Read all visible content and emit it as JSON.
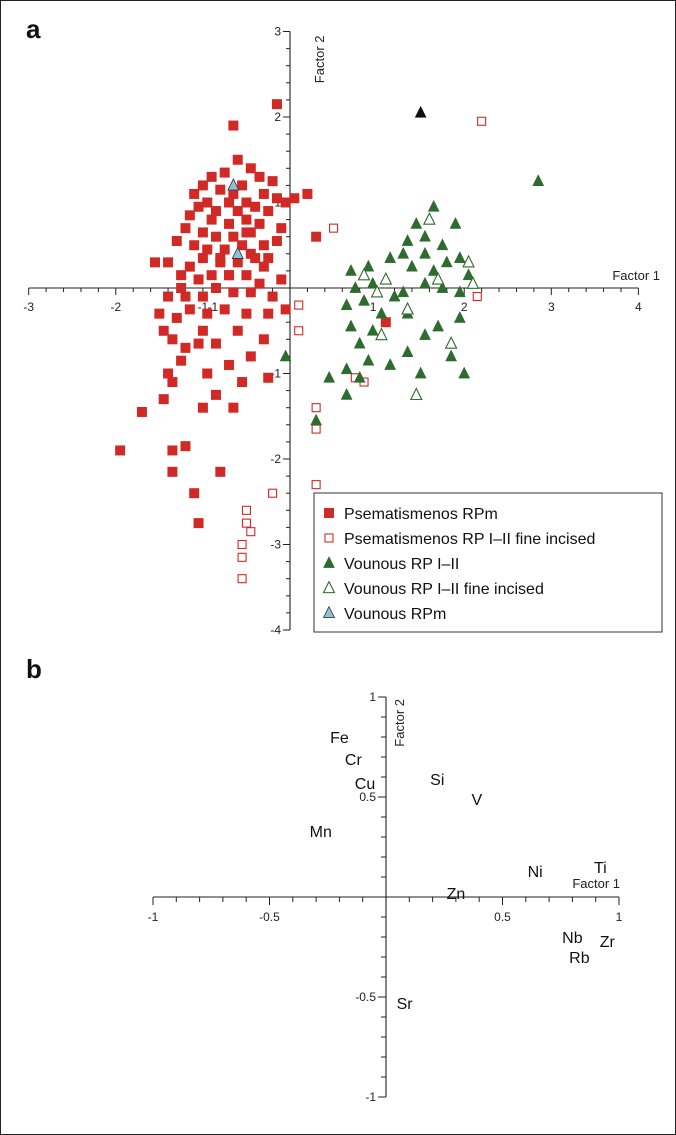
{
  "panels": {
    "a": {
      "letter": "a"
    },
    "b": {
      "letter": "b"
    }
  },
  "colors": {
    "psem_fill": "#d12a26",
    "vounous_fill": "#2e6b2e",
    "black": "#111111",
    "blue": "#8fc0d8",
    "axis": "#222222"
  },
  "chart_data": [
    {
      "type": "scatter",
      "panel": "a",
      "xlabel": "Factor 1",
      "ylabel": "Factor 2",
      "xlim": [
        -3,
        4
      ],
      "ylim": [
        -4,
        3
      ],
      "xticks": [
        -3,
        -2,
        -1,
        2,
        3,
        4
      ],
      "yticks": [
        3,
        2,
        1,
        -1,
        -2,
        -3,
        -4
      ],
      "grid": false,
      "legend_position": "bottom-right",
      "series": [
        {
          "name": "Psematismenos RPm",
          "marker": "square-filled",
          "color": "#d12a26",
          "points": [
            [
              -0.6,
              1.5
            ],
            [
              -0.45,
              1.4
            ],
            [
              -0.35,
              1.3
            ],
            [
              -0.2,
              1.25
            ],
            [
              -0.75,
              1.35
            ],
            [
              -0.9,
              1.3
            ],
            [
              -0.55,
              1.2
            ],
            [
              -0.3,
              1.1
            ],
            [
              -0.15,
              1.05
            ],
            [
              -0.65,
              1.1
            ],
            [
              -0.8,
              1.15
            ],
            [
              -1.0,
              1.2
            ],
            [
              -1.1,
              1.1
            ],
            [
              -0.95,
              1.0
            ],
            [
              -0.7,
              1.0
            ],
            [
              -0.5,
              1.0
            ],
            [
              -0.4,
              0.95
            ],
            [
              -0.25,
              0.9
            ],
            [
              -0.6,
              0.9
            ],
            [
              -0.85,
              0.9
            ],
            [
              -1.05,
              0.95
            ],
            [
              -1.15,
              0.85
            ],
            [
              -0.9,
              0.8
            ],
            [
              -0.7,
              0.75
            ],
            [
              -0.5,
              0.8
            ],
            [
              -0.35,
              0.75
            ],
            [
              -0.1,
              0.7
            ],
            [
              -0.45,
              0.65
            ],
            [
              -0.65,
              0.6
            ],
            [
              -0.85,
              0.6
            ],
            [
              -1.0,
              0.65
            ],
            [
              -1.2,
              0.7
            ],
            [
              -0.55,
              0.5
            ],
            [
              -0.75,
              0.45
            ],
            [
              -0.95,
              0.45
            ],
            [
              -0.3,
              0.5
            ],
            [
              -0.15,
              0.55
            ],
            [
              -1.1,
              0.5
            ],
            [
              -1.3,
              0.55
            ],
            [
              -0.4,
              0.35
            ],
            [
              -0.6,
              0.3
            ],
            [
              -0.8,
              0.3
            ],
            [
              -1.0,
              0.35
            ],
            [
              -1.15,
              0.25
            ],
            [
              -1.4,
              0.3
            ],
            [
              -1.55,
              0.3
            ],
            [
              -0.5,
              0.15
            ],
            [
              -0.7,
              0.15
            ],
            [
              -0.9,
              0.15
            ],
            [
              -1.05,
              0.1
            ],
            [
              -1.25,
              0.15
            ],
            [
              -0.3,
              0.25
            ],
            [
              -0.1,
              0.1
            ],
            [
              -0.2,
              -0.1
            ],
            [
              -0.45,
              -0.05
            ],
            [
              -0.65,
              -0.05
            ],
            [
              -0.85,
              0.0
            ],
            [
              -1.0,
              -0.1
            ],
            [
              -1.2,
              -0.1
            ],
            [
              -1.4,
              -0.1
            ],
            [
              -1.5,
              -0.3
            ],
            [
              -0.5,
              -0.3
            ],
            [
              -0.75,
              -0.25
            ],
            [
              -0.95,
              -0.3
            ],
            [
              -1.15,
              -0.25
            ],
            [
              -1.3,
              -0.35
            ],
            [
              -0.25,
              -0.3
            ],
            [
              -0.05,
              -0.25
            ],
            [
              -1.45,
              -0.5
            ],
            [
              -1.0,
              -0.5
            ],
            [
              -0.6,
              -0.5
            ],
            [
              -0.3,
              -0.6
            ],
            [
              -1.35,
              -0.6
            ],
            [
              -1.2,
              -0.7
            ],
            [
              -1.05,
              -0.65
            ],
            [
              -0.85,
              -0.65
            ],
            [
              -0.45,
              -0.8
            ],
            [
              -1.25,
              -0.85
            ],
            [
              -0.7,
              -0.9
            ],
            [
              -1.4,
              -1.0
            ],
            [
              -1.35,
              -1.1
            ],
            [
              -0.95,
              -1.0
            ],
            [
              -0.55,
              -1.1
            ],
            [
              -0.25,
              -1.05
            ],
            [
              -0.85,
              -1.25
            ],
            [
              -1.45,
              -1.3
            ],
            [
              -0.65,
              -1.4
            ],
            [
              -1.0,
              -1.4
            ],
            [
              -1.7,
              -1.45
            ],
            [
              -1.95,
              -1.9
            ],
            [
              -1.35,
              -1.9
            ],
            [
              -1.2,
              -1.85
            ],
            [
              -1.35,
              -2.15
            ],
            [
              -0.8,
              -2.15
            ],
            [
              -1.1,
              -2.4
            ],
            [
              -1.05,
              -2.75
            ],
            [
              -0.7,
              0.15
            ],
            [
              -1.25,
              0.0
            ],
            [
              -0.15,
              2.15
            ],
            [
              -0.45,
              0.4
            ],
            [
              -0.35,
              0.05
            ],
            [
              -0.25,
              0.35
            ],
            [
              -0.05,
              1.0
            ],
            [
              0.05,
              1.05
            ],
            [
              0.2,
              1.1
            ],
            [
              0.3,
              0.6
            ],
            [
              -0.65,
              1.9
            ],
            [
              -0.5,
              0.65
            ],
            [
              -0.8,
              0.35
            ],
            [
              1.1,
              -0.4
            ]
          ]
        },
        {
          "name": "Psematismenos RP I–II fine incised",
          "marker": "square-open",
          "color": "#d12a26",
          "points": [
            [
              2.2,
              1.95
            ],
            [
              0.5,
              0.7
            ],
            [
              0.1,
              -0.2
            ],
            [
              0.1,
              -0.5
            ],
            [
              0.75,
              -1.05
            ],
            [
              0.85,
              -1.1
            ],
            [
              0.3,
              -1.4
            ],
            [
              0.3,
              -1.65
            ],
            [
              0.3,
              -2.3
            ],
            [
              -0.5,
              -2.6
            ],
            [
              -0.5,
              -2.75
            ],
            [
              -0.45,
              -2.85
            ],
            [
              -0.55,
              -3.0
            ],
            [
              -0.55,
              -3.15
            ],
            [
              -0.55,
              -3.4
            ],
            [
              -0.2,
              -2.4
            ],
            [
              2.15,
              -0.1
            ]
          ]
        },
        {
          "name": "Vounous RP I–II",
          "marker": "triangle-filled",
          "color": "#2e6b2e",
          "points": [
            [
              2.85,
              1.25
            ],
            [
              1.65,
              0.95
            ],
            [
              1.45,
              0.75
            ],
            [
              1.9,
              0.75
            ],
            [
              1.55,
              0.6
            ],
            [
              1.35,
              0.55
            ],
            [
              1.75,
              0.5
            ],
            [
              1.15,
              0.35
            ],
            [
              1.3,
              0.4
            ],
            [
              1.55,
              0.4
            ],
            [
              1.95,
              0.35
            ],
            [
              1.4,
              0.25
            ],
            [
              1.65,
              0.2
            ],
            [
              1.8,
              0.3
            ],
            [
              2.05,
              0.15
            ],
            [
              0.9,
              0.25
            ],
            [
              0.7,
              0.2
            ],
            [
              1.55,
              0.05
            ],
            [
              1.3,
              -0.05
            ],
            [
              0.95,
              0.05
            ],
            [
              0.75,
              0.0
            ],
            [
              1.75,
              0.0
            ],
            [
              1.95,
              -0.05
            ],
            [
              1.2,
              -0.1
            ],
            [
              0.85,
              -0.15
            ],
            [
              0.65,
              -0.2
            ],
            [
              1.05,
              -0.3
            ],
            [
              1.35,
              -0.3
            ],
            [
              1.7,
              -0.45
            ],
            [
              1.95,
              -0.35
            ],
            [
              0.95,
              -0.5
            ],
            [
              0.7,
              -0.45
            ],
            [
              1.55,
              -0.55
            ],
            [
              0.8,
              -0.65
            ],
            [
              1.35,
              -0.75
            ],
            [
              1.85,
              -0.8
            ],
            [
              0.9,
              -0.85
            ],
            [
              0.65,
              -0.95
            ],
            [
              1.15,
              -0.9
            ],
            [
              0.8,
              -1.05
            ],
            [
              0.45,
              -1.05
            ],
            [
              1.5,
              -1.0
            ],
            [
              2.0,
              -1.0
            ],
            [
              0.65,
              -1.25
            ],
            [
              0.3,
              -1.55
            ],
            [
              -0.05,
              -0.8
            ]
          ]
        },
        {
          "name": "Vounous RP I–II fine incised",
          "marker": "triangle-open",
          "color": "#2e6b2e",
          "points": [
            [
              1.6,
              0.8
            ],
            [
              2.05,
              0.3
            ],
            [
              1.7,
              0.1
            ],
            [
              1.1,
              0.1
            ],
            [
              2.1,
              0.05
            ],
            [
              1.35,
              -0.25
            ],
            [
              1.0,
              -0.05
            ],
            [
              0.85,
              0.15
            ],
            [
              1.85,
              -0.65
            ],
            [
              1.05,
              -0.55
            ],
            [
              1.45,
              -1.25
            ]
          ]
        },
        {
          "name": "Vounous RPm",
          "marker": "triangle-filled",
          "color": "#8fc0d8",
          "points": [
            [
              -0.65,
              1.2
            ],
            [
              -0.6,
              0.4
            ]
          ]
        },
        {
          "name": "",
          "marker": "triangle-filled",
          "color": "#111111",
          "points": [
            [
              1.5,
              2.05
            ]
          ]
        }
      ]
    },
    {
      "type": "scatter",
      "panel": "b",
      "xlabel": "Factor 1",
      "ylabel": "Factor 2",
      "xlim": [
        -1,
        1
      ],
      "ylim": [
        -1,
        1
      ],
      "xticks": [
        -1,
        -0.5,
        0.5,
        1
      ],
      "yticks": [
        1,
        0.5,
        -0.5,
        -1
      ],
      "grid": false,
      "points": [
        {
          "label": "Fe",
          "x": -0.2,
          "y": 0.8
        },
        {
          "label": "Cr",
          "x": -0.14,
          "y": 0.69
        },
        {
          "label": "Cu",
          "x": -0.09,
          "y": 0.57
        },
        {
          "label": "Si",
          "x": 0.22,
          "y": 0.59
        },
        {
          "label": "V",
          "x": 0.39,
          "y": 0.49
        },
        {
          "label": "Mn",
          "x": -0.28,
          "y": 0.33
        },
        {
          "label": "Ni",
          "x": 0.64,
          "y": 0.13
        },
        {
          "label": "Ti",
          "x": 0.92,
          "y": 0.15
        },
        {
          "label": "Zn",
          "x": 0.3,
          "y": 0.02
        },
        {
          "label": "Nb",
          "x": 0.8,
          "y": -0.2
        },
        {
          "label": "Zr",
          "x": 0.95,
          "y": -0.22
        },
        {
          "label": "Rb",
          "x": 0.83,
          "y": -0.3
        },
        {
          "label": "Sr",
          "x": 0.08,
          "y": -0.53
        }
      ]
    }
  ]
}
